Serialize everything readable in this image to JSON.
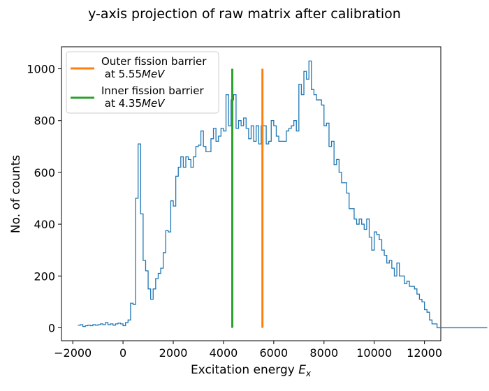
{
  "chart_data": {
    "type": "line",
    "title": "y-axis projection of raw matrix after calibration",
    "xlabel": "Excitation energy",
    "xlabel_symbol": "E",
    "xlabel_subscript": "x",
    "ylabel": "No. of counts",
    "xlim": [
      -2450,
      12650
    ],
    "ylim": [
      -50,
      1085
    ],
    "x_ticks": [
      -2000,
      0,
      2000,
      4000,
      6000,
      8000,
      10000,
      12000
    ],
    "x_tick_labels": [
      "−2000",
      "0",
      "2000",
      "4000",
      "6000",
      "8000",
      "10000",
      "12000"
    ],
    "y_ticks": [
      0,
      200,
      400,
      600,
      800,
      1000
    ],
    "y_tick_labels": [
      "0",
      "200",
      "400",
      "600",
      "800",
      "1000"
    ],
    "grid": false,
    "legend_position": "top-left",
    "histogram": {
      "color": "#1f77b4",
      "bin_width": 100,
      "x_start": -1800,
      "counts": [
        10,
        12,
        5,
        8,
        10,
        8,
        12,
        10,
        12,
        15,
        12,
        20,
        12,
        15,
        10,
        15,
        18,
        15,
        8,
        20,
        30,
        95,
        90,
        500,
        710,
        440,
        260,
        220,
        150,
        110,
        150,
        190,
        210,
        230,
        290,
        375,
        370,
        490,
        470,
        585,
        620,
        660,
        620,
        660,
        650,
        620,
        660,
        700,
        705,
        760,
        700,
        680,
        680,
        730,
        770,
        720,
        740,
        770,
        760,
        900,
        780,
        880,
        900,
        770,
        800,
        780,
        810,
        770,
        730,
        780,
        720,
        780,
        710,
        780,
        780,
        710,
        720,
        800,
        780,
        740,
        720,
        720,
        720,
        760,
        770,
        780,
        800,
        760,
        940,
        900,
        990,
        960,
        1030,
        920,
        900,
        880,
        880,
        860,
        780,
        790,
        700,
        720,
        630,
        650,
        600,
        560,
        560,
        520,
        460,
        460,
        420,
        400,
        420,
        400,
        380,
        420,
        350,
        300,
        370,
        360,
        340,
        300,
        280,
        250,
        260,
        230,
        200,
        250,
        200,
        200,
        170,
        180,
        160,
        160,
        150,
        130,
        110,
        100,
        70,
        60,
        30,
        15,
        15,
        0,
        0,
        0,
        0,
        0,
        0,
        0,
        0,
        0,
        0,
        0,
        0,
        0,
        0,
        0,
        0,
        0,
        0,
        0,
        0
      ]
    },
    "series": [
      {
        "name": "Outer fission barrier",
        "name_line2": " at 5.55",
        "unit_italic": "MeV",
        "color": "#ff7f0e",
        "x": 5550,
        "y_range": [
          0,
          1000
        ]
      },
      {
        "name": "Inner fission barrier",
        "name_line2": " at 4.35",
        "unit_italic": "MeV",
        "color": "#2ca02c",
        "x": 4350,
        "y_range": [
          0,
          1000
        ]
      }
    ]
  }
}
